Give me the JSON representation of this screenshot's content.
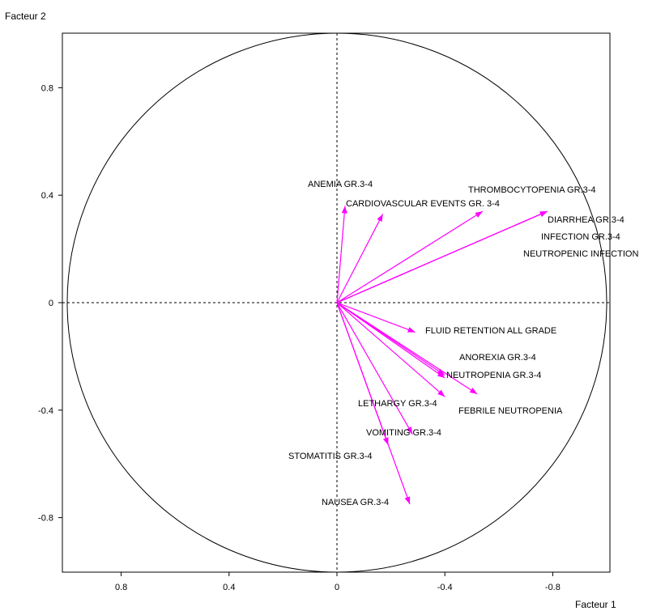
{
  "chart_data": {
    "type": "correlation-circle",
    "xlabel": "Facteur 1",
    "ylabel": "Facteur 2",
    "x_axis": "reversed",
    "xlim": [
      1.0,
      -1.0
    ],
    "ylim": [
      -1.0,
      1.0
    ],
    "x_ticks": [
      "0.8",
      "0.4",
      "0",
      "-0.4",
      "-0.8"
    ],
    "x_tick_values": [
      0.8,
      0.4,
      0,
      -0.4,
      -0.8
    ],
    "y_ticks": [
      "0.8",
      "0.4",
      "0",
      "-0.4",
      "-0.8"
    ],
    "y_tick_values": [
      0.8,
      0.4,
      0,
      -0.4,
      -0.8
    ],
    "unit_circle": true,
    "arrow_color": "#ff00ff",
    "variables": [
      {
        "label": "ANEMIA GR.3-4",
        "x": -0.03,
        "y": 0.36
      },
      {
        "label": "CARDIOVASCULAR EVENTS GR. 3-4",
        "x": -0.17,
        "y": 0.33
      },
      {
        "label": "THROMBOCYTOPENIA GR.3-4",
        "x": -0.54,
        "y": 0.34
      },
      {
        "label": "DIARRHEA GR.3-4",
        "x": -0.78,
        "y": 0.34
      },
      {
        "label": "INFECTION GR.3-4",
        "x": -0.78,
        "y": 0.34
      },
      {
        "label": "NEUTROPENIC INFECTION",
        "x": -0.78,
        "y": 0.34
      },
      {
        "label": "FLUID RETENTION ALL GRADE",
        "x": -0.29,
        "y": -0.11
      },
      {
        "label": "ANOREXIA GR.3-4",
        "x": -0.4,
        "y": -0.27
      },
      {
        "label": "NEUTROPENIA GR.3-4",
        "x": -0.4,
        "y": -0.28
      },
      {
        "label": "FEBRILE NEUTROPENIA",
        "x": -0.52,
        "y": -0.34
      },
      {
        "label": "LETHARGY GR.3-4",
        "x": -0.4,
        "y": -0.35
      },
      {
        "label": "VOMITING GR.3-4",
        "x": -0.28,
        "y": -0.49
      },
      {
        "label": "STOMATITIS GR.3-4",
        "x": -0.19,
        "y": -0.53
      },
      {
        "label": "NAUSEA GR.3-4",
        "x": -0.27,
        "y": -0.75
      }
    ]
  }
}
